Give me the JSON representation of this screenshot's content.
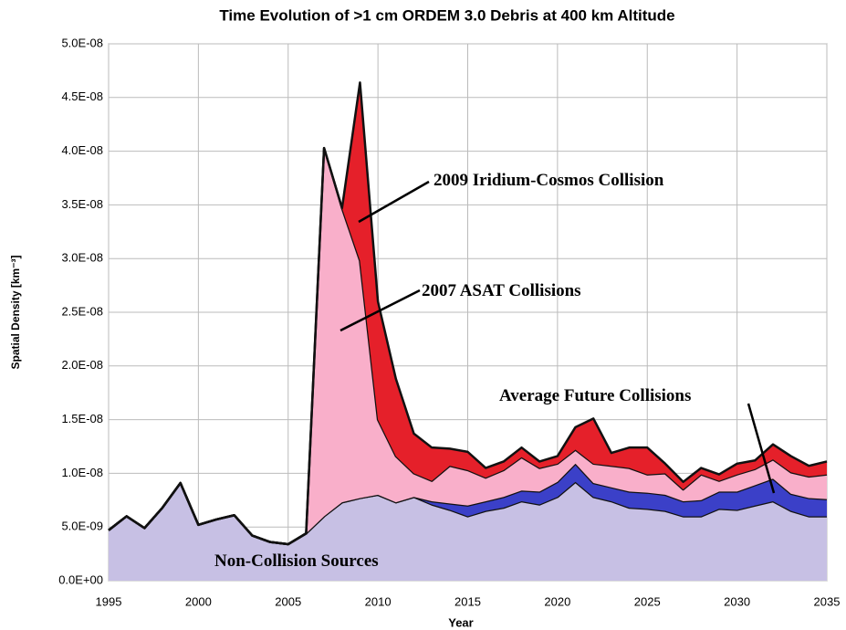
{
  "chart_data": {
    "type": "stacked_area",
    "title": "Time Evolution of >1 cm ORDEM 3.0 Debris at 400 km Altitude",
    "xlabel": "Year",
    "ylabel": "Spatial Density [km⁻³]",
    "x": [
      1995,
      1996,
      1997,
      1998,
      1999,
      2000,
      2001,
      2002,
      2003,
      2004,
      2005,
      2006,
      2007,
      2008,
      2009,
      2010,
      2011,
      2012,
      2013,
      2014,
      2015,
      2016,
      2017,
      2018,
      2019,
      2020,
      2021,
      2022,
      2023,
      2024,
      2025,
      2026,
      2027,
      2028,
      2029,
      2030,
      2031,
      2032,
      2033,
      2034,
      2035
    ],
    "series": [
      {
        "name": "Non-Collision Sources",
        "color": "#c7c0e4",
        "values": [
          4.7e-09,
          6e-09,
          4.9e-09,
          6.8e-09,
          9.1e-09,
          5.2e-09,
          5.7e-09,
          6.1e-09,
          4.2e-09,
          3.6e-09,
          3.4e-09,
          4.4e-09,
          6e-09,
          7.3e-09,
          7.7e-09,
          8e-09,
          7.3e-09,
          7.8e-09,
          7.1e-09,
          6.6e-09,
          6e-09,
          6.5e-09,
          6.8e-09,
          7.4e-09,
          7.1e-09,
          7.8e-09,
          9.2e-09,
          7.8e-09,
          7.4e-09,
          6.8e-09,
          6.7e-09,
          6.5e-09,
          6e-09,
          6e-09,
          6.7e-09,
          6.6e-09,
          7e-09,
          7.4e-09,
          6.5e-09,
          6e-09,
          6e-09
        ]
      },
      {
        "name": "Average Future Collisions",
        "color": "#3b40c8",
        "values": [
          0,
          0,
          0,
          0,
          0,
          0,
          0,
          0,
          0,
          0,
          0,
          0,
          0,
          0,
          0,
          0,
          0,
          0,
          3e-10,
          6e-10,
          1e-09,
          9e-10,
          1e-09,
          1e-09,
          1.2e-09,
          1.4e-09,
          1.7e-09,
          1.3e-09,
          1.3e-09,
          1.5e-09,
          1.5e-09,
          1.5e-09,
          1.4e-09,
          1.5e-09,
          1.6e-09,
          1.7e-09,
          1.9e-09,
          2.1e-09,
          1.6e-09,
          1.7e-09,
          1.6e-09
        ]
      },
      {
        "name": "2007 ASAT Collisions",
        "color": "#f9afca",
        "values": [
          0,
          0,
          0,
          0,
          0,
          0,
          0,
          0,
          0,
          0,
          0,
          0,
          3.43e-08,
          2.74e-08,
          2.21e-08,
          7e-09,
          4.3e-09,
          2.2e-09,
          1.9e-09,
          3.5e-09,
          3.3e-09,
          2.2e-09,
          2.5e-09,
          3.1e-09,
          2.2e-09,
          1.7e-09,
          1.3e-09,
          1.8e-09,
          2e-09,
          2.2e-09,
          1.7e-09,
          2e-09,
          1.1e-09,
          2.4e-09,
          1e-09,
          1.6e-09,
          1.5e-09,
          1.8e-09,
          2e-09,
          2e-09,
          2.3e-09
        ]
      },
      {
        "name": "2009 Iridium-Cosmos Collision",
        "color": "#e5202a",
        "values": [
          0,
          0,
          0,
          0,
          0,
          0,
          0,
          0,
          0,
          0,
          0,
          0,
          0,
          0,
          1.66e-08,
          1.1e-08,
          7.2e-09,
          3.7e-09,
          3.1e-09,
          1.6e-09,
          1.7e-09,
          9e-10,
          8e-10,
          9e-10,
          6e-10,
          7e-10,
          2.1e-09,
          4.2e-09,
          1.2e-09,
          1.9e-09,
          2.5e-09,
          9e-10,
          7e-10,
          6e-10,
          6e-10,
          1e-09,
          8e-10,
          1.4e-09,
          1.5e-09,
          1e-09,
          1.2e-09
        ]
      }
    ],
    "xlim": [
      1995,
      2035
    ],
    "xticks": [
      1995,
      2000,
      2005,
      2010,
      2015,
      2020,
      2025,
      2030,
      2035
    ],
    "ylim": [
      0,
      5e-08
    ],
    "yticks": [
      {
        "value": 0,
        "label": "0.0E+00"
      },
      {
        "value": 5e-09,
        "label": "5.0E-09"
      },
      {
        "value": 1e-08,
        "label": "1.0E-08"
      },
      {
        "value": 1.5e-08,
        "label": "1.5E-08"
      },
      {
        "value": 2e-08,
        "label": "2.0E-08"
      },
      {
        "value": 2.5e-08,
        "label": "2.5E-08"
      },
      {
        "value": 3e-08,
        "label": "3.0E-08"
      },
      {
        "value": 3.5e-08,
        "label": "3.5E-08"
      },
      {
        "value": 4e-08,
        "label": "4.0E-08"
      },
      {
        "value": 4.5e-08,
        "label": "4.5E-08"
      },
      {
        "value": 5e-08,
        "label": "5.0E-08"
      }
    ],
    "grid": true
  }
}
